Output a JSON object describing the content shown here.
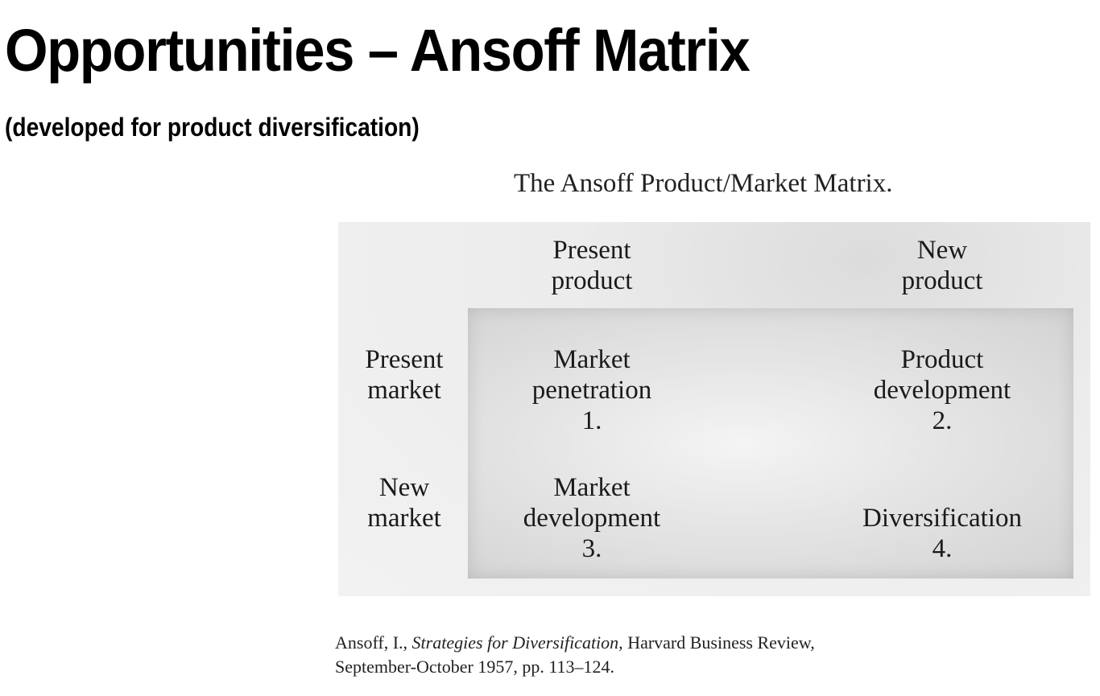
{
  "slide": {
    "title": "Opportunities – Ansoff Matrix",
    "subtitle": "(developed for product diversification)"
  },
  "figure": {
    "caption": "The Ansoff Product/Market Matrix.",
    "columns": [
      {
        "line1": "Present",
        "line2": "product"
      },
      {
        "line1": "New",
        "line2": "product"
      }
    ],
    "rows": [
      {
        "line1": "Present",
        "line2": "market"
      },
      {
        "line1": "New",
        "line2": "market"
      }
    ],
    "cells": [
      {
        "line1": "Market",
        "line2": "penetration",
        "number": "1."
      },
      {
        "line1": "Product",
        "line2": "development",
        "number": "2."
      },
      {
        "line1": "Market",
        "line2": "development",
        "number": "3."
      },
      {
        "line1": "",
        "line2": "Diversification",
        "number": "4."
      }
    ]
  },
  "citation": {
    "author": "Ansoff, I.,",
    "work": "Strategies for Diversification,",
    "journal": "Harvard Business Review,",
    "details": "September-October 1957, pp. 113–124."
  }
}
